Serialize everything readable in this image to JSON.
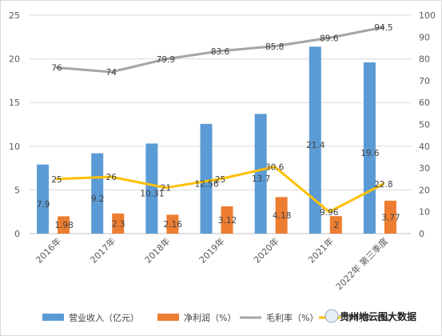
{
  "chart_data": {
    "type": "bar+line",
    "categories": [
      "2016年",
      "2017年",
      "2018年",
      "2019年",
      "2020年",
      "2021年",
      "2022年 第三季度"
    ],
    "bar_series": [
      {
        "name": "营业收入（亿元）",
        "axis": "left",
        "color": "#5b9bd5",
        "values": [
          7.9,
          9.2,
          10.31,
          12.56,
          13.7,
          21.4,
          19.6
        ],
        "labels": [
          "7.9",
          "9.2",
          "10.31",
          "12.56",
          "13.7",
          "21.4",
          "19.6"
        ]
      },
      {
        "name": "净利润（%）",
        "axis": "left",
        "color": "#ed7d31",
        "values": [
          1.98,
          2.3,
          2.16,
          3.12,
          4.18,
          2,
          3.77
        ],
        "labels": [
          "1.98",
          "2.3",
          "2.16",
          "3.12",
          "4.18",
          "2",
          "3.77"
        ]
      }
    ],
    "line_series": [
      {
        "name": "毛利率（%）",
        "axis": "right",
        "color": "#a5a5a5",
        "values": [
          76,
          74,
          79.9,
          83.6,
          85.8,
          89.6,
          94.5
        ],
        "labels": [
          "76",
          "74",
          "79.9",
          "83.6",
          "85.8",
          "89.6",
          "94.5"
        ]
      },
      {
        "name": "净利率（%）",
        "axis": "right",
        "color": "#ffc000",
        "values": [
          25,
          26,
          21,
          25,
          30.6,
          9.96,
          22.8
        ],
        "labels": [
          "25",
          "26",
          "21",
          "25",
          "30.6",
          "9.96",
          "22.8"
        ]
      }
    ],
    "left_axis": {
      "min": 0,
      "max": 25,
      "step": 5,
      "ticks": [
        "0",
        "5",
        "10",
        "15",
        "20",
        "25"
      ]
    },
    "right_axis": {
      "min": 0,
      "max": 100,
      "step": 10,
      "ticks": [
        "0",
        "10",
        "20",
        "30",
        "40",
        "50",
        "60",
        "70",
        "80",
        "90",
        "100"
      ]
    },
    "grid": true,
    "legend": {
      "position": "bottom",
      "entries": [
        "营业收入（亿元）",
        "净利润（%）",
        "毛利率（%）",
        "净利率（%）"
      ]
    },
    "watermark": "贵州地云图大数据"
  }
}
